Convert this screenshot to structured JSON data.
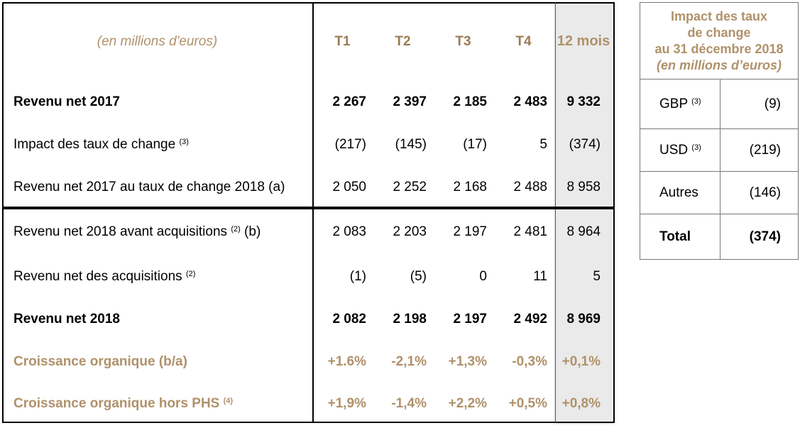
{
  "main_table": {
    "header": {
      "unit": "(en millions d'euros)",
      "columns": [
        "T1",
        "T2",
        "T3",
        "T4",
        "12 mois"
      ]
    },
    "rows": [
      {
        "label": "Revenu net 2017",
        "sup": "",
        "suffix": "",
        "style": "bold",
        "values": [
          "2 267",
          "2 397",
          "2 185",
          "2 483",
          "9 332"
        ]
      },
      {
        "label": "Impact des taux de change",
        "sup": "(3)",
        "suffix": "",
        "style": "normal",
        "values": [
          "(217)",
          "(145)",
          "(17)",
          "5",
          "(374)"
        ]
      },
      {
        "label": "Revenu net 2017 au taux de change 2018 (a)",
        "sup": "",
        "suffix": "",
        "style": "normal",
        "values": [
          "2 050",
          "2 252",
          "2 168",
          "2 488",
          "8 958"
        ]
      },
      {
        "label": "Revenu net 2018 avant acquisitions",
        "sup": "(2)",
        "suffix": " (b)",
        "style": "normal",
        "values": [
          "2 083",
          "2 203",
          "2 197",
          "2 481",
          "8 964"
        ]
      },
      {
        "label": "Revenu net des acquisitions",
        "sup": "(2)",
        "suffix": "",
        "style": "normal",
        "values": [
          "(1)",
          "(5)",
          "0",
          "11",
          "5"
        ]
      },
      {
        "label": "Revenu net 2018",
        "sup": "",
        "suffix": "",
        "style": "bold",
        "values": [
          "2 082",
          "2 198",
          "2 197",
          "2 492",
          "8 969"
        ]
      },
      {
        "label": "Croissance organique (b/a)",
        "sup": "",
        "suffix": "",
        "style": "gold",
        "values": [
          "+1.6%",
          "-2,1%",
          "+1,3%",
          "-0,3%",
          "+0,1%"
        ]
      },
      {
        "label": "Croissance organique hors PHS",
        "sup": "(4)",
        "suffix": "",
        "style": "gold",
        "values": [
          "+1,9%",
          "-1,4%",
          "+2,2%",
          "+0,5%",
          "+0,8%"
        ]
      }
    ]
  },
  "side_table": {
    "title_lines": [
      "Impact des taux",
      "de change",
      "au 31 décembre 2018"
    ],
    "subtitle": "(en millions d’euros)",
    "rows": [
      {
        "currency": "GBP",
        "sup": "(3)",
        "value": "(9)"
      },
      {
        "currency": "USD",
        "sup": "(3)",
        "value": "(219)"
      },
      {
        "currency": "Autres",
        "sup": "",
        "value": "(146)"
      },
      {
        "currency": "Total",
        "sup": "",
        "value": "(374)"
      }
    ]
  },
  "colors": {
    "gold_text": "#b0916a",
    "header_gold": "#9b7b55",
    "highlight_column_bg": "#eaeaea"
  }
}
